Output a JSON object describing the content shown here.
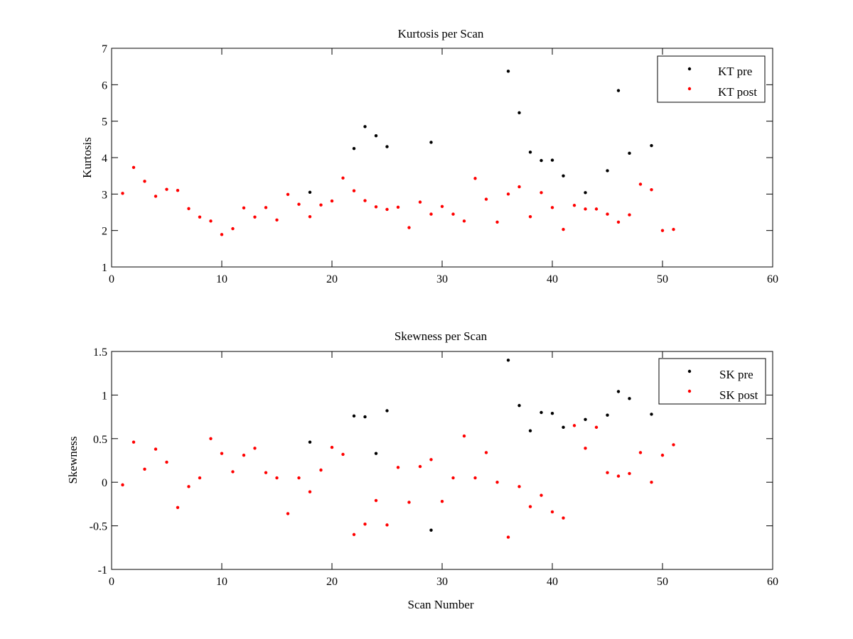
{
  "chart_data": [
    {
      "type": "scatter",
      "title": "Kurtosis per Scan",
      "xlabel": "",
      "ylabel": "Kurtosis",
      "xlim": [
        0,
        60
      ],
      "ylim": [
        1,
        7
      ],
      "xticks": [
        0,
        10,
        20,
        30,
        40,
        50,
        60
      ],
      "yticks": [
        1,
        2,
        3,
        4,
        5,
        6,
        7
      ],
      "grid": false,
      "legend": "top-right",
      "series": [
        {
          "name": "KT pre",
          "color": "#000000",
          "x": [
            18,
            22,
            23,
            24,
            25,
            29,
            36,
            37,
            38,
            39,
            40,
            41,
            43,
            45,
            46,
            47,
            49
          ],
          "y": [
            3.05,
            4.25,
            4.85,
            4.6,
            4.3,
            4.42,
            6.37,
            5.23,
            4.15,
            3.92,
            3.93,
            3.5,
            3.04,
            3.64,
            5.84,
            4.12,
            4.33
          ]
        },
        {
          "name": "KT post",
          "color": "#ff0000",
          "x": [
            1,
            2,
            3,
            4,
            5,
            6,
            7,
            8,
            9,
            10,
            11,
            12,
            13,
            14,
            15,
            16,
            17,
            18,
            19,
            20,
            21,
            22,
            23,
            24,
            25,
            26,
            27,
            28,
            29,
            30,
            31,
            32,
            33,
            34,
            35,
            36,
            37,
            38,
            39,
            40,
            41,
            42,
            43,
            44,
            45,
            46,
            47,
            48,
            49,
            50,
            51
          ],
          "y": [
            3.02,
            3.73,
            3.35,
            2.94,
            3.13,
            3.1,
            2.6,
            2.37,
            2.26,
            1.89,
            2.05,
            2.62,
            2.37,
            2.63,
            2.29,
            2.99,
            2.72,
            2.38,
            2.7,
            2.81,
            3.44,
            3.09,
            2.82,
            2.65,
            2.58,
            2.64,
            2.08,
            2.78,
            2.45,
            2.66,
            2.45,
            2.26,
            3.43,
            2.86,
            2.23,
            3.0,
            3.2,
            2.38,
            3.04,
            2.63,
            2.03,
            2.69,
            2.59,
            2.59,
            2.45,
            2.23,
            2.43,
            3.27,
            3.12,
            2.0,
            2.03
          ]
        }
      ]
    },
    {
      "type": "scatter",
      "title": "Skewness per Scan",
      "xlabel": "Scan Number",
      "ylabel": "Skewness",
      "xlim": [
        0,
        60
      ],
      "ylim": [
        -1,
        1.5
      ],
      "xticks": [
        0,
        10,
        20,
        30,
        40,
        50,
        60
      ],
      "yticks": [
        -1,
        -0.5,
        0,
        0.5,
        1,
        1.5
      ],
      "grid": false,
      "legend": "top-right",
      "series": [
        {
          "name": "SK pre",
          "color": "#000000",
          "x": [
            18,
            22,
            23,
            24,
            25,
            29,
            36,
            37,
            38,
            39,
            40,
            41,
            43,
            45,
            46,
            47,
            49
          ],
          "y": [
            0.46,
            0.76,
            0.75,
            0.33,
            0.82,
            -0.55,
            1.4,
            0.88,
            0.59,
            0.8,
            0.79,
            0.63,
            0.72,
            0.77,
            1.04,
            0.96,
            0.78
          ]
        },
        {
          "name": "SK post",
          "color": "#ff0000",
          "x": [
            1,
            2,
            3,
            4,
            5,
            6,
            7,
            8,
            9,
            10,
            11,
            12,
            13,
            14,
            15,
            16,
            17,
            18,
            19,
            20,
            21,
            22,
            23,
            24,
            25,
            26,
            27,
            28,
            29,
            30,
            31,
            32,
            33,
            34,
            35,
            36,
            37,
            38,
            39,
            40,
            41,
            42,
            43,
            44,
            45,
            46,
            47,
            48,
            49,
            50,
            51
          ],
          "y": [
            -0.03,
            0.46,
            0.15,
            0.38,
            0.23,
            -0.29,
            -0.05,
            0.05,
            0.5,
            0.33,
            0.12,
            0.31,
            0.39,
            0.11,
            0.05,
            -0.36,
            0.05,
            -0.11,
            0.14,
            0.4,
            0.32,
            -0.6,
            -0.48,
            -0.21,
            -0.49,
            0.17,
            -0.23,
            0.18,
            0.26,
            -0.22,
            0.05,
            0.53,
            0.05,
            0.34,
            0.0,
            -0.63,
            -0.05,
            -0.28,
            -0.15,
            -0.34,
            -0.41,
            0.65,
            0.39,
            0.63,
            0.11,
            0.07,
            0.1,
            0.34,
            0.0,
            0.31,
            0.43
          ]
        }
      ]
    }
  ]
}
